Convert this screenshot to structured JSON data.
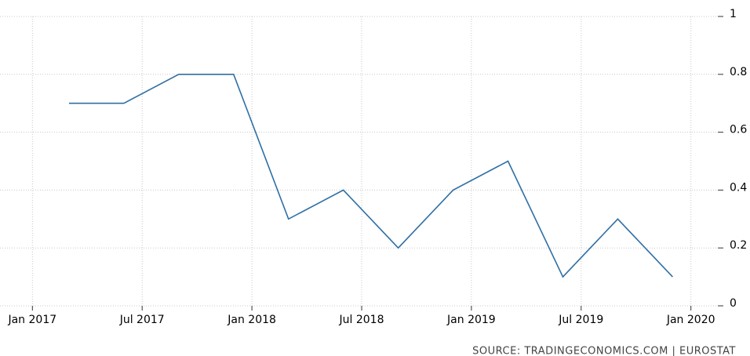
{
  "chart_data": {
    "type": "line",
    "x": [
      "2017-03",
      "2017-06",
      "2017-09",
      "2017-12",
      "2018-03",
      "2018-06",
      "2018-09",
      "2018-12",
      "2019-03",
      "2019-06",
      "2019-09",
      "2019-12"
    ],
    "series": [
      {
        "color": "#2f6fa5",
        "values": [
          0.7,
          0.7,
          0.8,
          0.8,
          0.3,
          0.4,
          0.2,
          0.4,
          0.5,
          0.1,
          0.3,
          0.1
        ]
      }
    ],
    "xlim": [
      "2016-12",
      "2020-02"
    ],
    "xticks": [
      {
        "value": "2017-01",
        "label": "Jan 2017"
      },
      {
        "value": "2017-07",
        "label": "Jul 2017"
      },
      {
        "value": "2018-01",
        "label": "Jan 2018"
      },
      {
        "value": "2018-07",
        "label": "Jul 2018"
      },
      {
        "value": "2019-01",
        "label": "Jan 2019"
      },
      {
        "value": "2019-07",
        "label": "Jul 2019"
      },
      {
        "value": "2020-01",
        "label": "Jan 2020"
      }
    ],
    "ylim": [
      0,
      1
    ],
    "yticks": [
      0,
      0.2,
      0.4,
      0.6,
      0.8,
      1
    ],
    "grid": true,
    "source": "SOURCE: TRADINGECONOMICS.COM | EUROSTAT"
  }
}
